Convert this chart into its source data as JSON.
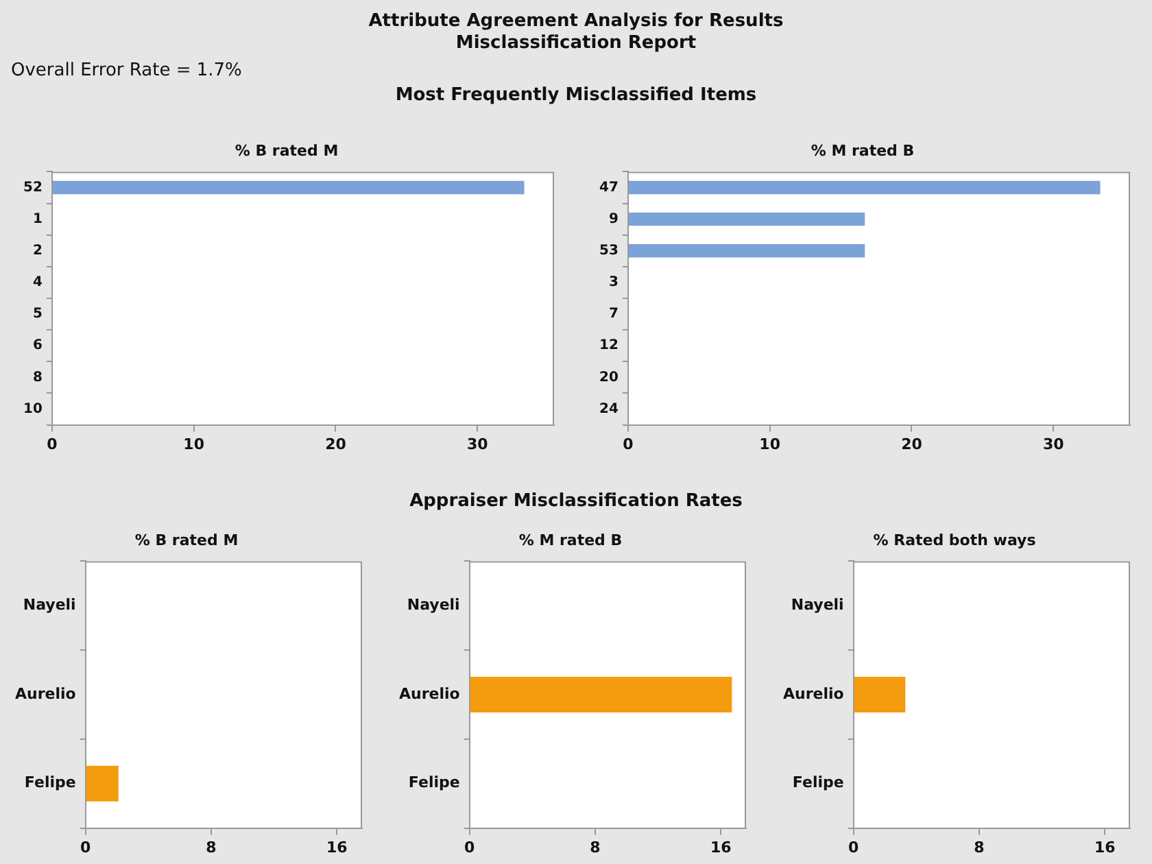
{
  "chart_data": [
    {
      "type": "bar",
      "orientation": "horizontal",
      "title": "% B rated M",
      "annotations": [
        "Attribute Agreement Analysis for Results",
        "Misclassification Report",
        "Overall Error Rate = 1.7%",
        "Most Frequently Misclassified Items"
      ],
      "categories": [
        "52",
        "1",
        "2",
        "4",
        "5",
        "6",
        "8",
        "10"
      ],
      "values": [
        33.3,
        0,
        0,
        0,
        0,
        0,
        0,
        0
      ],
      "color": "#7ba3d8",
      "xlim": [
        0,
        35.4
      ],
      "xticks": [
        0,
        10,
        20,
        30
      ],
      "grid": false
    },
    {
      "type": "bar",
      "orientation": "horizontal",
      "title": "% M rated B",
      "categories": [
        "47",
        "9",
        "53",
        "3",
        "7",
        "12",
        "20",
        "24"
      ],
      "values": [
        33.3,
        16.7,
        16.7,
        0,
        0,
        0,
        0,
        0
      ],
      "color": "#7ba3d8",
      "xlim": [
        0,
        35.4
      ],
      "xticks": [
        0,
        10,
        20,
        30
      ],
      "grid": false
    },
    {
      "type": "bar",
      "orientation": "horizontal",
      "title": "% B rated M",
      "annotations": [
        "Appraiser Misclassification Rates"
      ],
      "categories": [
        "Nayeli",
        "Aurelio",
        "Felipe"
      ],
      "values": [
        0,
        0,
        2.1
      ],
      "color": "#f59b0e",
      "xlim": [
        0,
        17.6
      ],
      "xticks": [
        0,
        8,
        16
      ],
      "grid": false
    },
    {
      "type": "bar",
      "orientation": "horizontal",
      "title": "% M rated B",
      "categories": [
        "Nayeli",
        "Aurelio",
        "Felipe"
      ],
      "values": [
        0,
        16.7,
        0
      ],
      "color": "#f59b0e",
      "xlim": [
        0,
        17.6
      ],
      "xticks": [
        0,
        8,
        16
      ],
      "grid": false
    },
    {
      "type": "bar",
      "orientation": "horizontal",
      "title": "% Rated both ways",
      "categories": [
        "Nayeli",
        "Aurelio",
        "Felipe"
      ],
      "values": [
        0,
        3.3,
        0
      ],
      "color": "#f59b0e",
      "xlim": [
        0,
        17.6
      ],
      "xticks": [
        0,
        8,
        16
      ],
      "grid": false
    }
  ]
}
